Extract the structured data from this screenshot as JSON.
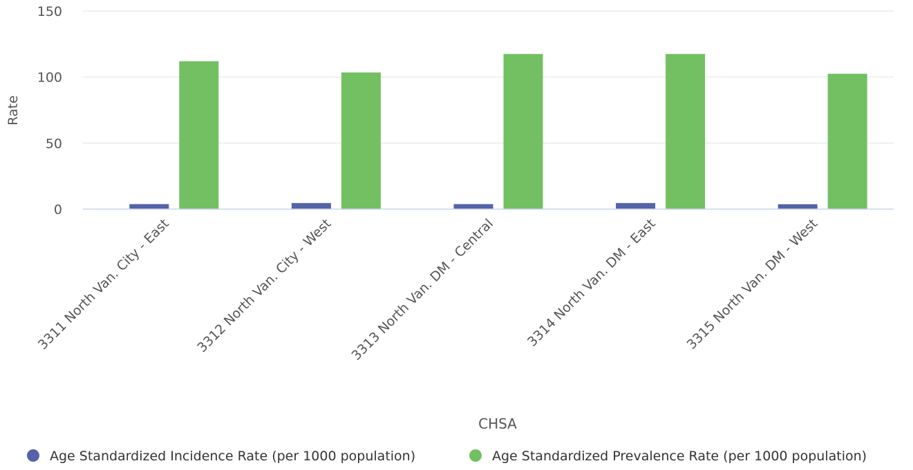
{
  "chart_data": {
    "type": "bar",
    "title": "",
    "xlabel": "CHSA",
    "ylabel": "Rate",
    "ylim": [
      0,
      150
    ],
    "yticks": [
      0,
      50,
      100,
      150
    ],
    "grid": true,
    "legend_position": "bottom",
    "categories": [
      "3311 North Van. City - East",
      "3312 North Van. City - West",
      "3313 North Van. DM - Central",
      "3314 North Van. DM - East",
      "3315 North Van. DM - West"
    ],
    "series": [
      {
        "name": "Age Standardized Incidence Rate (per 1000 population)",
        "color": "#5463a8",
        "values": [
          3.8,
          4.6,
          3.8,
          4.6,
          3.7
        ]
      },
      {
        "name": "Age Standardized Prevalence Rate (per 1000 population)",
        "color": "#72c062",
        "values": [
          112,
          103.5,
          117.5,
          117.5,
          102.5
        ]
      }
    ]
  }
}
